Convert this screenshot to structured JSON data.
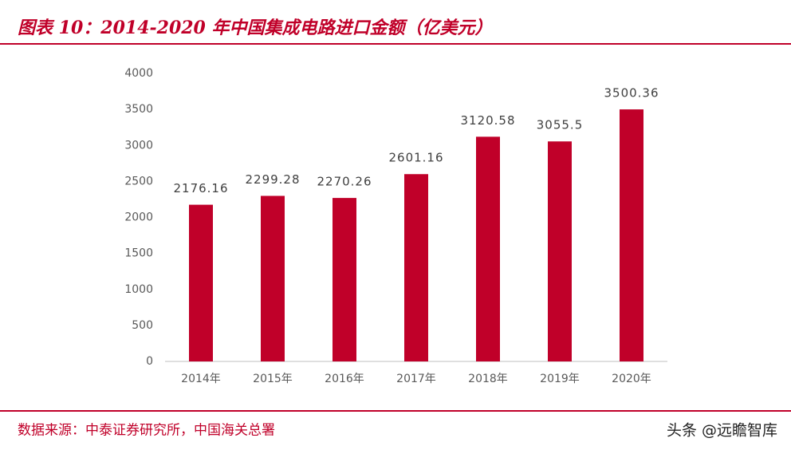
{
  "chart_data": {
    "type": "bar",
    "title": "图表 10：2014-2020 年中国集成电路进口金额（亿美元）",
    "categories": [
      "2014年",
      "2015年",
      "2016年",
      "2017年",
      "2018年",
      "2019年",
      "2020年"
    ],
    "values": [
      2176.16,
      2299.28,
      2270.26,
      2601.16,
      3120.58,
      3055.5,
      3500.36
    ],
    "color": "#c00029",
    "ylim": [
      0,
      4000
    ],
    "yticks": [
      0,
      500,
      1000,
      1500,
      2000,
      2500,
      3000,
      3500,
      4000
    ],
    "grid": false
  },
  "source": "数据来源：中泰证券研究所，中国海关总署",
  "watermark": "头条 @远瞻智库"
}
